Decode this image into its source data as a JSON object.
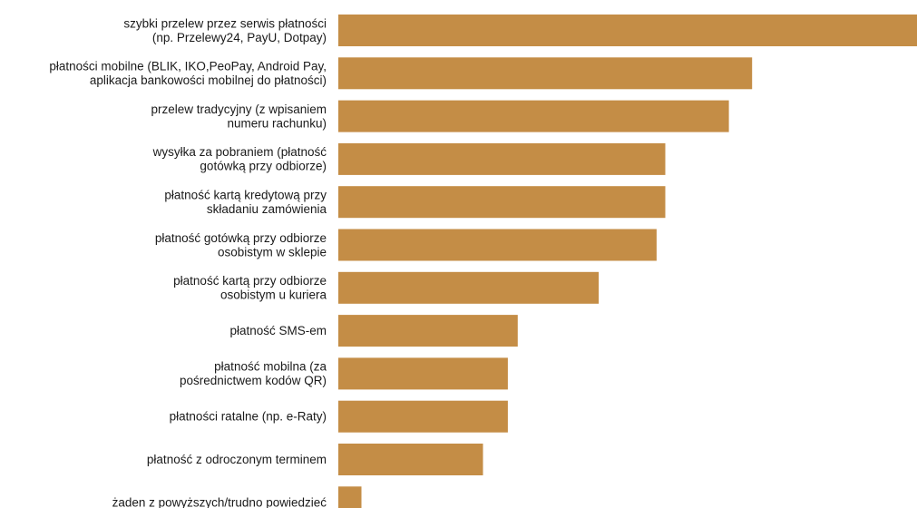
{
  "chart_data": {
    "type": "bar",
    "orientation": "horizontal",
    "title": "",
    "xlabel": "",
    "ylabel": "",
    "grid": false,
    "legend": "none",
    "bar_color": "#C48D46",
    "xlim": [
      0,
      100
    ],
    "categories": [
      [
        "szybki przelew przez serwis płatności",
        "(np. Przelewy24, PayU, Dotpay)"
      ],
      [
        "płatności mobilne (BLIK, IKO,PeoPay, Android Pay,",
        "aplikacja bankowości mobilnej do płatności)"
      ],
      [
        "przelew tradycyjny (z wpisaniem",
        "numeru rachunku)"
      ],
      [
        "wysyłka za pobraniem (płatność",
        "gotówką przy odbiorze)"
      ],
      [
        "płatność kartą kredytową przy",
        "składaniu zamówienia"
      ],
      [
        "płatność gotówką przy odbiorze",
        "osobistym w sklepie"
      ],
      [
        "płatność kartą przy odbiorze",
        "osobistym u kuriera"
      ],
      [
        "płatność SMS-em"
      ],
      [
        "płatność mobilna (za",
        "pośrednictwem kodów QR)"
      ],
      [
        "płatności ratalne (np. e-Raty)"
      ],
      [
        "płatność z odroczonym terminem"
      ],
      [
        "żaden z powyższych/trudno powiedzieć"
      ]
    ],
    "values": [
      100,
      71.5,
      67.5,
      56.5,
      56.5,
      55,
      45,
      31,
      29.3,
      29.3,
      25,
      4
    ]
  }
}
